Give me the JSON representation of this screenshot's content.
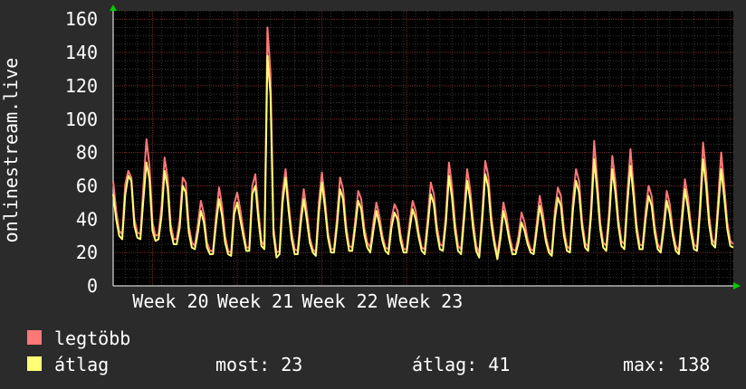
{
  "chart_data": {
    "type": "line",
    "ylabel": "onlinestream.live",
    "ylim": [
      0,
      165
    ],
    "yticks": [
      0,
      20,
      40,
      60,
      80,
      100,
      120,
      140,
      160
    ],
    "xticks": [
      "Week 20",
      "Week 21",
      "Week 22",
      "Week 23"
    ],
    "grid": true,
    "sample_interval_hours": 6,
    "series": [
      {
        "name": "legtöbb",
        "color": "#ff7777",
        "values": [
          63,
          45,
          33,
          31,
          61,
          69,
          65,
          40,
          32,
          31,
          60,
          88,
          72,
          38,
          30,
          31,
          48,
          77,
          65,
          37,
          28,
          28,
          40,
          65,
          62,
          36,
          26,
          24,
          37,
          51,
          43,
          26,
          21,
          21,
          42,
          59,
          48,
          30,
          21,
          20,
          49,
          56,
          46,
          34,
          23,
          23,
          60,
          67,
          45,
          27,
          24,
          155,
          128,
          35,
          20,
          21,
          56,
          70,
          50,
          32,
          22,
          21,
          42,
          58,
          45,
          29,
          22,
          20,
          50,
          68,
          52,
          32,
          22,
          22,
          41,
          65,
          58,
          36,
          24,
          23,
          39,
          57,
          52,
          35,
          26,
          23,
          38,
          50,
          42,
          30,
          23,
          22,
          40,
          49,
          45,
          31,
          22,
          22,
          38,
          51,
          45,
          32,
          23,
          22,
          41,
          62,
          55,
          36,
          25,
          24,
          43,
          74,
          60,
          38,
          24,
          22,
          45,
          70,
          58,
          39,
          24,
          20,
          44,
          75,
          66,
          42,
          28,
          18,
          32,
          50,
          42,
          30,
          22,
          21,
          30,
          44,
          38,
          28,
          22,
          21,
          37,
          54,
          44,
          30,
          22,
          20,
          45,
          59,
          54,
          34,
          24,
          22,
          52,
          70,
          63,
          39,
          26,
          23,
          48,
          87,
          64,
          38,
          26,
          24,
          46,
          78,
          63,
          40,
          27,
          25,
          56,
          82,
          60,
          37,
          25,
          24,
          45,
          60,
          54,
          36,
          25,
          22,
          38,
          57,
          49,
          33,
          24,
          21,
          43,
          64,
          53,
          36,
          25,
          23,
          49,
          86,
          68,
          42,
          28,
          25,
          52,
          80,
          60,
          38,
          27,
          25
        ]
      },
      {
        "name": "átlag",
        "color": "#ffff77",
        "values": [
          55,
          40,
          30,
          28,
          55,
          66,
          63,
          36,
          29,
          28,
          52,
          74,
          64,
          33,
          27,
          28,
          42,
          69,
          59,
          33,
          25,
          25,
          35,
          60,
          56,
          32,
          23,
          22,
          32,
          45,
          38,
          23,
          19,
          19,
          37,
          52,
          42,
          26,
          19,
          18,
          43,
          50,
          40,
          30,
          21,
          21,
          55,
          60,
          40,
          24,
          22,
          138,
          115,
          31,
          17,
          19,
          50,
          65,
          45,
          28,
          19,
          19,
          37,
          52,
          40,
          26,
          20,
          18,
          44,
          62,
          47,
          29,
          20,
          20,
          36,
          58,
          52,
          32,
          21,
          21,
          35,
          51,
          46,
          31,
          23,
          20,
          33,
          45,
          37,
          27,
          21,
          19,
          35,
          44,
          40,
          27,
          20,
          20,
          34,
          46,
          40,
          29,
          21,
          19,
          36,
          55,
          49,
          32,
          22,
          21,
          38,
          66,
          53,
          33,
          21,
          19,
          40,
          63,
          52,
          34,
          21,
          17,
          39,
          67,
          59,
          37,
          25,
          16,
          28,
          45,
          37,
          27,
          19,
          19,
          26,
          38,
          33,
          25,
          20,
          19,
          33,
          48,
          39,
          27,
          20,
          18,
          40,
          53,
          48,
          30,
          21,
          20,
          46,
          63,
          56,
          35,
          23,
          21,
          43,
          76,
          57,
          34,
          23,
          21,
          41,
          70,
          56,
          36,
          24,
          22,
          50,
          72,
          54,
          33,
          22,
          22,
          40,
          54,
          48,
          32,
          22,
          20,
          34,
          51,
          43,
          30,
          21,
          19,
          38,
          58,
          47,
          32,
          22,
          21,
          44,
          76,
          60,
          37,
          25,
          23,
          46,
          70,
          53,
          34,
          24,
          23
        ]
      }
    ]
  },
  "legend": [
    {
      "label": "legtöbb",
      "color": "#ff7777"
    },
    {
      "label": "átlag",
      "color": "#ffff77"
    }
  ],
  "stats": {
    "most": "most: 23",
    "atlag": "átlag: 41",
    "max": "max: 138"
  }
}
